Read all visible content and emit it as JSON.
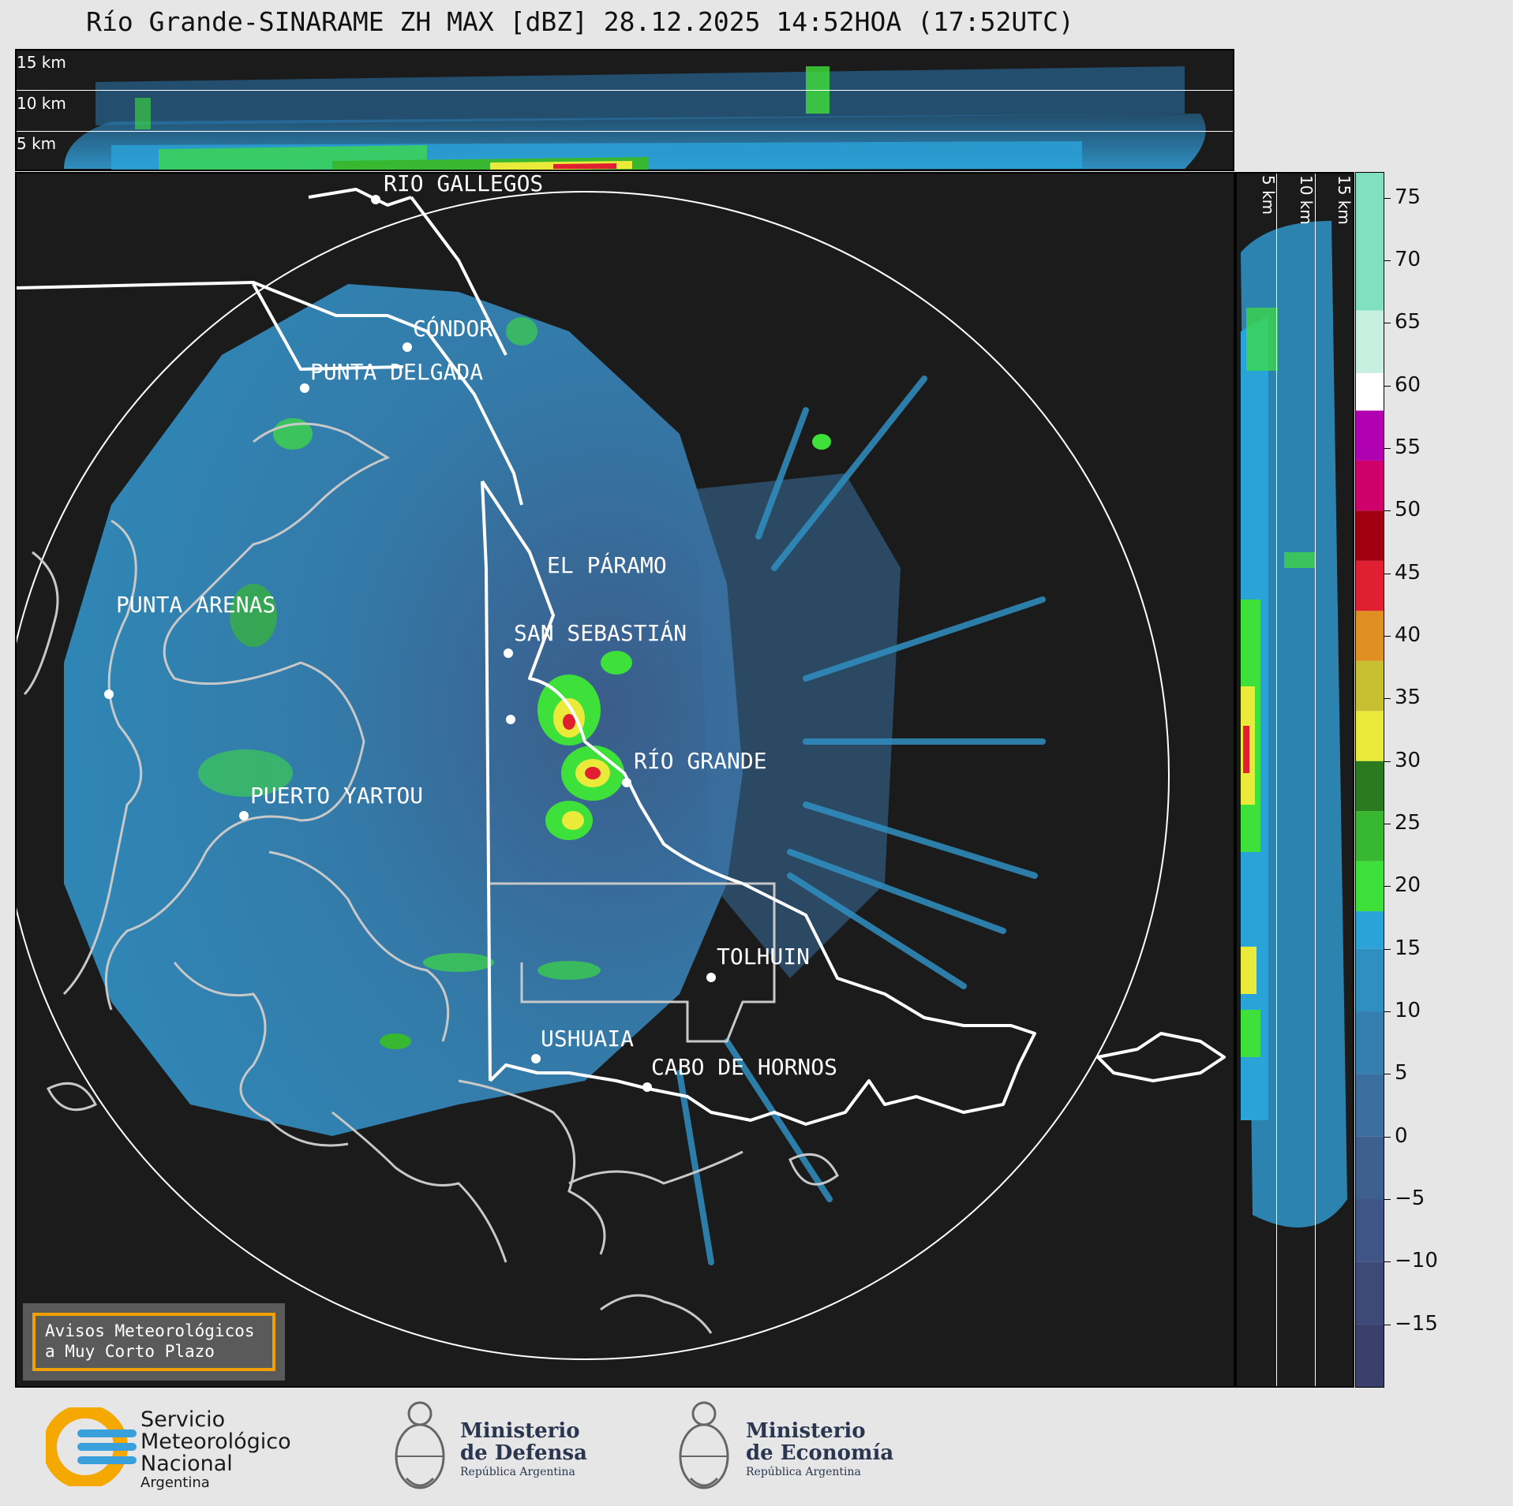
{
  "title": "Río Grande-SINARAME ZH MAX [dBZ] 28.12.2025 14:52HOA (17:52UTC)",
  "top_panel": {
    "heights": [
      "15 km",
      "10 km",
      "5 km"
    ]
  },
  "right_panel": {
    "heights": [
      "5 km",
      "10 km",
      "15 km"
    ]
  },
  "cities": [
    {
      "name": "RÍO GALLEGOS"
    },
    {
      "name": "CÓNDOR"
    },
    {
      "name": "PUNTA DELGADA"
    },
    {
      "name": "PUNTA ARENAS"
    },
    {
      "name": "EL PÁRAMO"
    },
    {
      "name": "SAN SEBASTIÁN"
    },
    {
      "name": "RÍO GRANDE"
    },
    {
      "name": "PUERTO YARTOU"
    },
    {
      "name": "TOLHUIN"
    },
    {
      "name": "USHUAIA"
    },
    {
      "name": "CABO DE HORNOS"
    }
  ],
  "notice": {
    "line1": "Avisos Meteorológicos",
    "line2": "a Muy Corto Plazo"
  },
  "colorbar": {
    "unit": "dBZ",
    "range": [
      -20,
      77
    ],
    "ticks": [
      "75",
      "70",
      "65",
      "60",
      "55",
      "50",
      "45",
      "40",
      "35",
      "30",
      "25",
      "20",
      "15",
      "10",
      "5",
      "0",
      "−5",
      "−10",
      "−15"
    ],
    "tick_values": [
      75,
      70,
      65,
      60,
      55,
      50,
      45,
      40,
      35,
      30,
      25,
      20,
      15,
      10,
      5,
      0,
      -5,
      -10,
      -15
    ],
    "stops": [
      {
        "from": -20,
        "to": -15,
        "color": "#3a3f6b"
      },
      {
        "from": -15,
        "to": -10,
        "color": "#3d4a78"
      },
      {
        "from": -10,
        "to": -5,
        "color": "#3e5585"
      },
      {
        "from": -5,
        "to": 0,
        "color": "#3d6090"
      },
      {
        "from": 0,
        "to": 5,
        "color": "#3a6f9f"
      },
      {
        "from": 5,
        "to": 10,
        "color": "#357fb0"
      },
      {
        "from": 10,
        "to": 15,
        "color": "#2f8fc0"
      },
      {
        "from": 15,
        "to": 18,
        "color": "#2aa3d8"
      },
      {
        "from": 18,
        "to": 22,
        "color": "#3ee03a"
      },
      {
        "from": 22,
        "to": 26,
        "color": "#38b830"
      },
      {
        "from": 26,
        "to": 30,
        "color": "#2a7a20"
      },
      {
        "from": 30,
        "to": 34,
        "color": "#eaea3a"
      },
      {
        "from": 34,
        "to": 38,
        "color": "#c8c030"
      },
      {
        "from": 38,
        "to": 42,
        "color": "#e09020"
      },
      {
        "from": 42,
        "to": 46,
        "color": "#e02030"
      },
      {
        "from": 46,
        "to": 50,
        "color": "#a00010"
      },
      {
        "from": 50,
        "to": 54,
        "color": "#d0006a"
      },
      {
        "from": 54,
        "to": 58,
        "color": "#b000b0"
      },
      {
        "from": 58,
        "to": 61,
        "color": "#ffffff"
      },
      {
        "from": 61,
        "to": 66,
        "color": "#c8f0e0"
      },
      {
        "from": 66,
        "to": 77,
        "color": "#80e0c0"
      }
    ]
  },
  "logos": {
    "smn": {
      "line1": "Servicio",
      "line2": "Meteorológico",
      "line3": "Nacional",
      "line4": "Argentina"
    },
    "defensa": {
      "line1": "Ministerio",
      "line2": "de Defensa",
      "line3": "República Argentina"
    },
    "economia": {
      "line1": "Ministerio",
      "line2": "de Economía",
      "line3": "República Argentina"
    }
  },
  "colors": {
    "radar_blue": "#2f8fc0",
    "radar_green": "#3ee03a",
    "accent_orange": "#f0a000"
  }
}
